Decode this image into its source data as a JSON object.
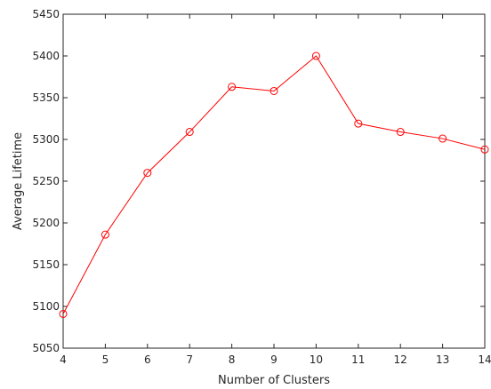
{
  "chart_data": {
    "type": "line",
    "title": "",
    "xlabel": "Number of Clusters",
    "ylabel": "Average Lifetime",
    "xlim": [
      4,
      14
    ],
    "ylim": [
      5050,
      5450
    ],
    "x_ticks": [
      "4",
      "5",
      "6",
      "7",
      "8",
      "9",
      "10",
      "11",
      "12",
      "13",
      "14"
    ],
    "y_ticks": [
      "5050",
      "5100",
      "5150",
      "5200",
      "5250",
      "5300",
      "5350",
      "5400",
      "5450"
    ],
    "grid": false,
    "legend": "none",
    "series": [
      {
        "color": "#ff0000",
        "marker": "circle",
        "x": [
          4,
          5,
          6,
          7,
          8,
          9,
          10,
          11,
          12,
          13,
          14
        ],
        "y": [
          5091,
          5186,
          5260,
          5309,
          5363,
          5358,
          5400,
          5319,
          5309,
          5301,
          5288
        ]
      }
    ]
  }
}
